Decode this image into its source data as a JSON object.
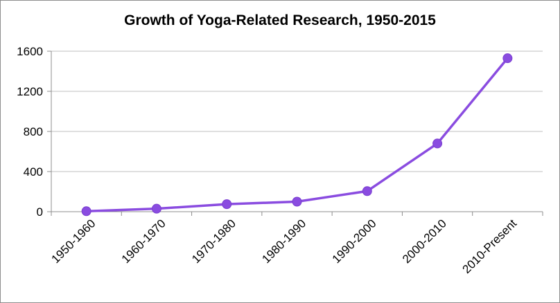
{
  "chart_data": {
    "type": "line",
    "title": "Growth of Yoga-Related Research, 1950-2015",
    "xlabel": "",
    "ylabel": "",
    "categories": [
      "1950-1960",
      "1960-1970",
      "1970-1980",
      "1980-1990",
      "1990-2000",
      "2000-2010",
      "2010-Present"
    ],
    "series": [
      {
        "values": [
          5,
          30,
          75,
          100,
          205,
          680,
          1530
        ]
      }
    ],
    "ylim": [
      0,
      1600
    ],
    "yticks": [
      "0",
      "400",
      "800",
      "1200",
      "1600"
    ],
    "grid": true,
    "legend": "none",
    "colors": {
      "line": "#8a4ce0",
      "marker": "#8a4ce0",
      "grid": "#bfbfbf",
      "axis": "#8c8c8c"
    }
  }
}
